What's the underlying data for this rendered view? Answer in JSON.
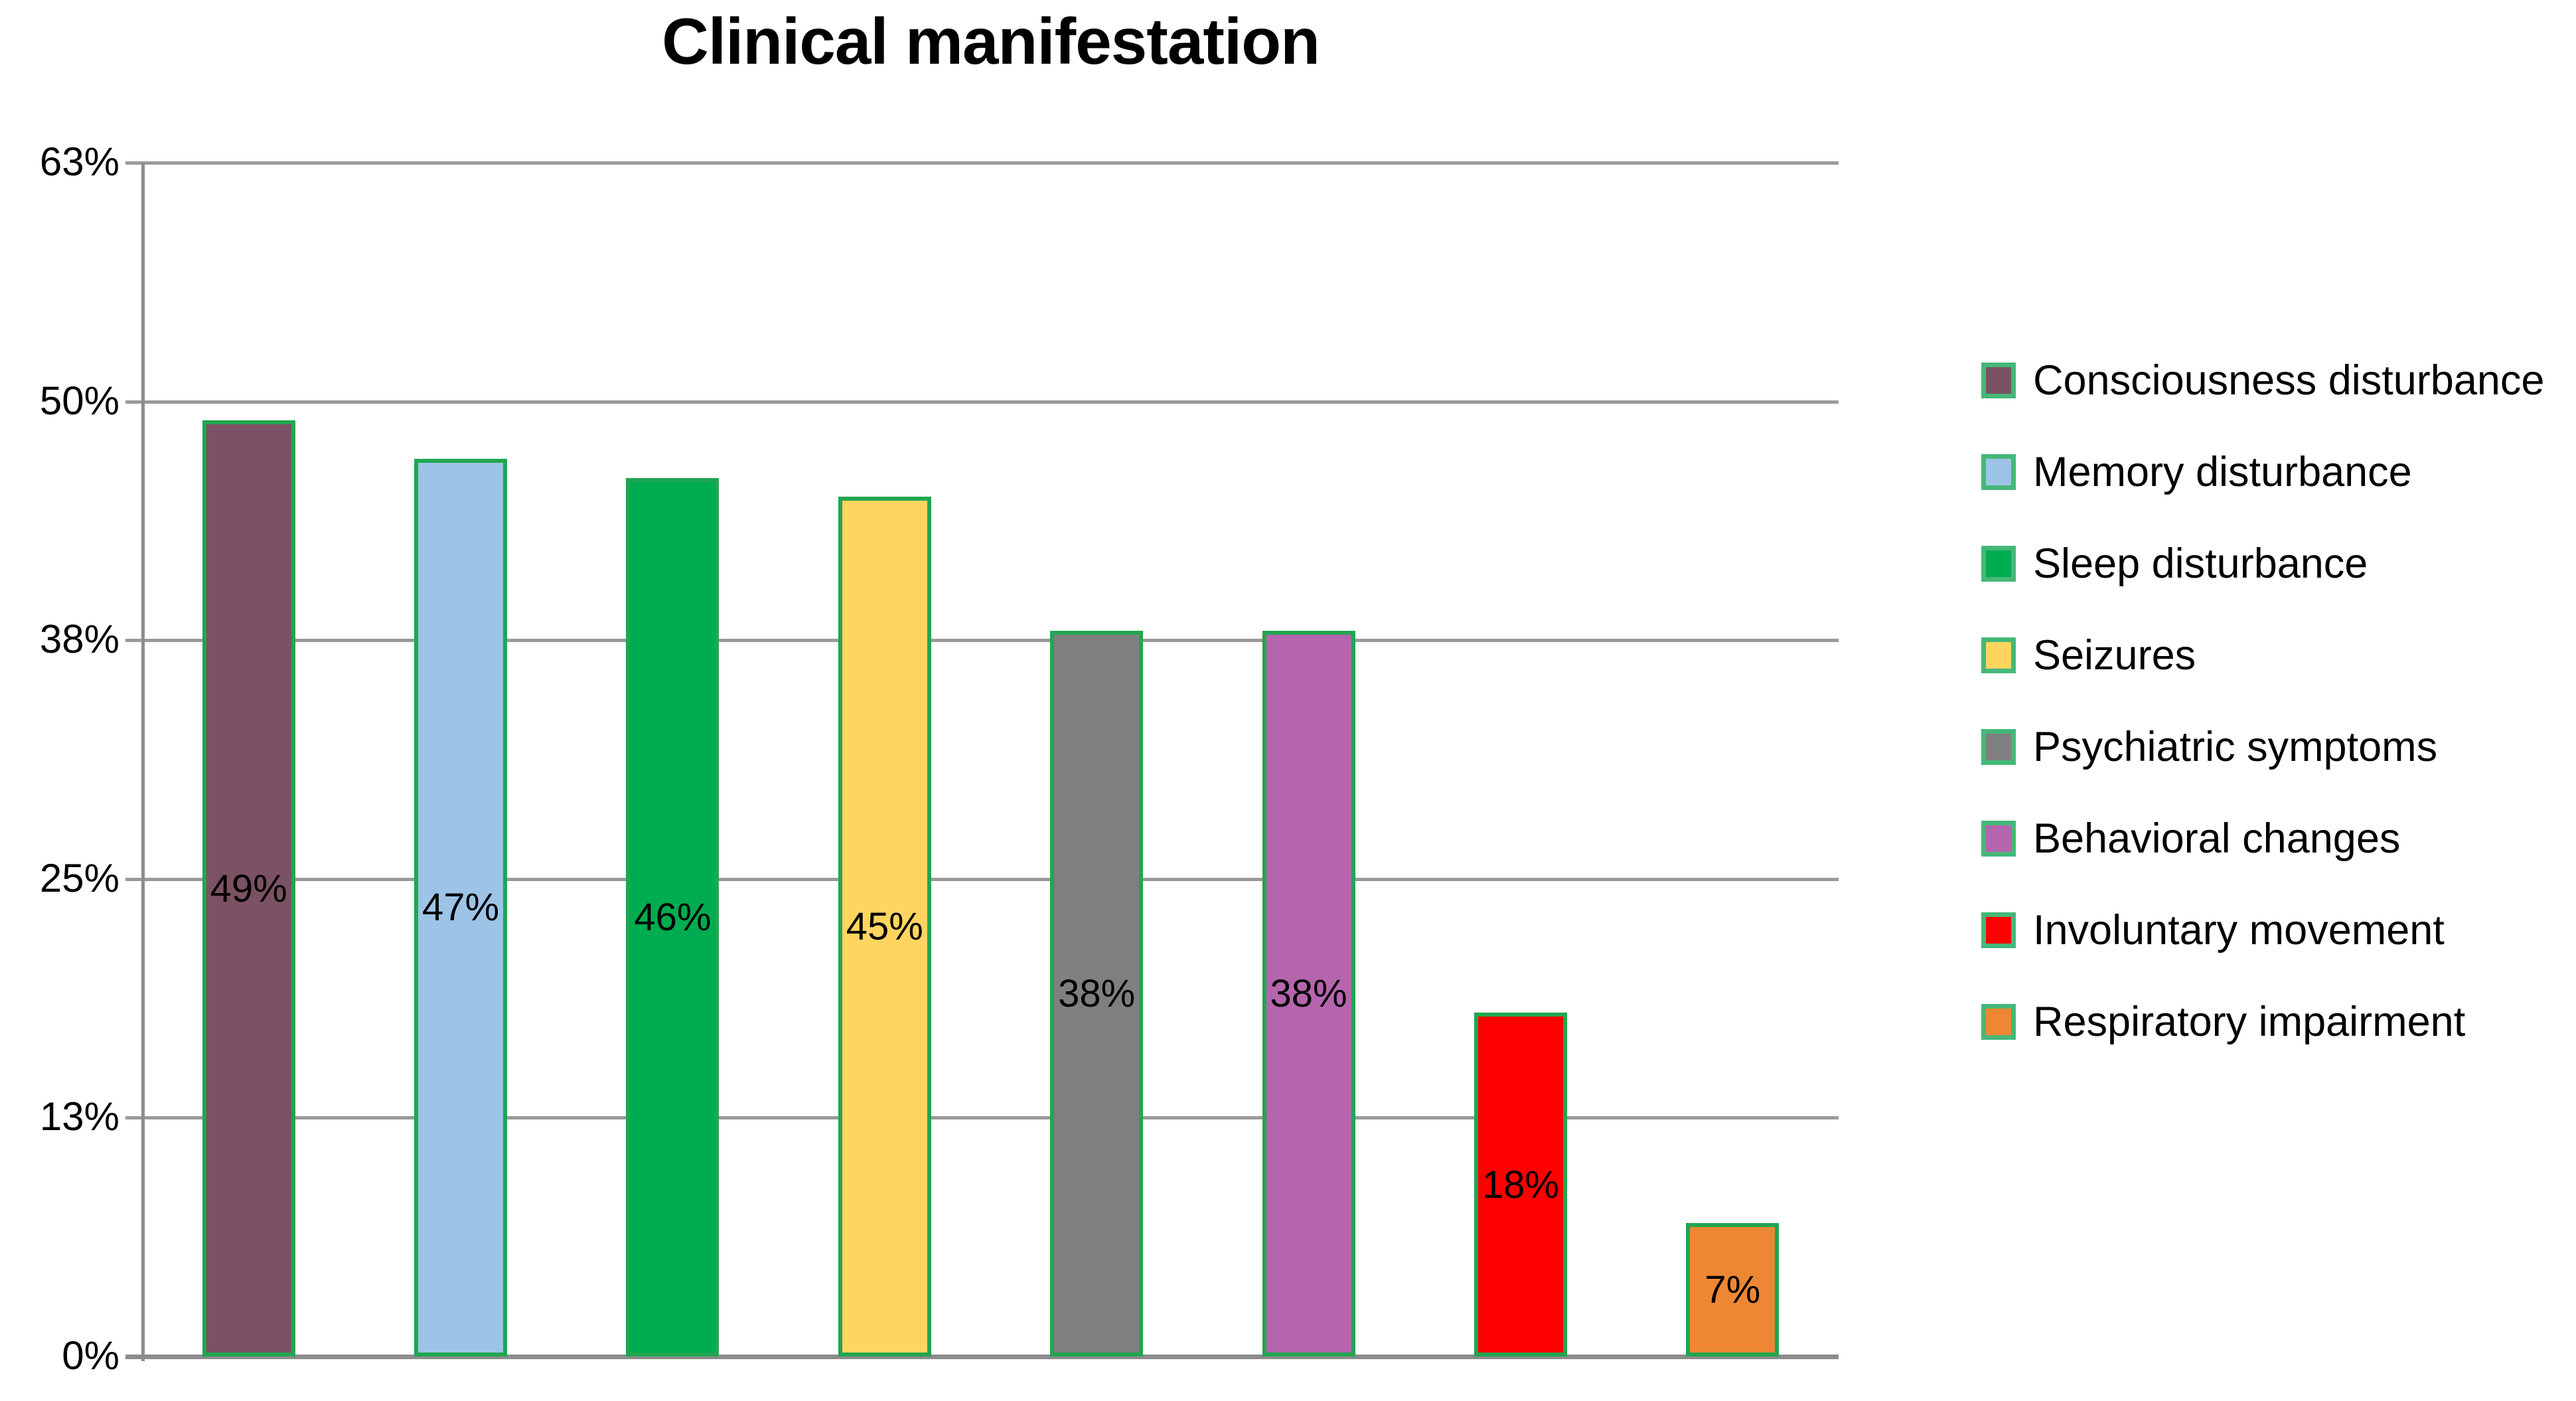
{
  "chart_data": {
    "type": "bar",
    "title": "Clinical manifestation",
    "categories": [
      "Consciousness disturbance",
      "Memory disturbance",
      "Sleep disturbance",
      "Seizures",
      "Psychiatric symptoms",
      "Behavioral changes",
      "Involuntary movement",
      "Respiratory impairment"
    ],
    "values": [
      49,
      47,
      46,
      45,
      38,
      38,
      18,
      7
    ],
    "data_labels": [
      "49%",
      "47%",
      "46%",
      "45%",
      "38%",
      "38%",
      "18%",
      "7%"
    ],
    "bar_colors": [
      "#7B5263",
      "#9DC3E6",
      "#00AC50",
      "#FFD55F",
      "#7F7F7F",
      "#B565AE",
      "#FE0000",
      "#ED8733"
    ],
    "bar_border_color": "#21A650",
    "legend_border_color": "#44B878",
    "xlabel": "",
    "ylabel": "",
    "ylim": [
      0,
      62.5
    ],
    "yticks": [
      {
        "label": "63%",
        "value": 62.5
      },
      {
        "label": "50%",
        "value": 50
      },
      {
        "label": "38%",
        "value": 37.5
      },
      {
        "label": "25%",
        "value": 25
      },
      {
        "label": "13%",
        "value": 12.5
      },
      {
        "label": "0%",
        "value": 0
      }
    ],
    "grid": true,
    "legend_position": "right",
    "gridline_color": "#9A9A9A",
    "axis_color": "#8C8C8C",
    "text_color": "#000000",
    "background": "#FFFFFF"
  }
}
